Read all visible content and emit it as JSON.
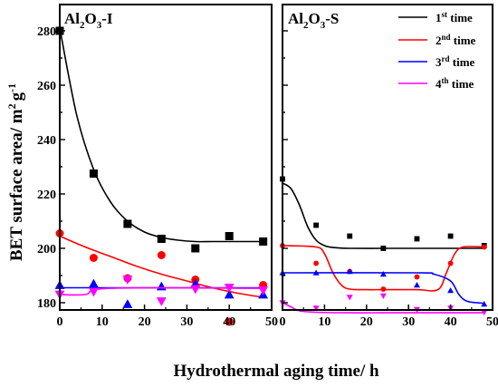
{
  "figure": {
    "xlabel": "Hydrothermal aging time/ h",
    "ylabel_main": "BET surface area/ m",
    "ylabel_sup1": "2",
    "ylabel_mid": "g",
    "ylabel_sup2": "-1"
  },
  "legend": {
    "items": [
      {
        "prefix": "1",
        "sup": "st",
        "suffix": " time",
        "color": "#000000"
      },
      {
        "prefix": "2",
        "sup": "nd",
        "suffix": " time",
        "color": "#ff0000"
      },
      {
        "prefix": "3",
        "sup": "rd",
        "suffix": " time",
        "color": "#0000ff"
      },
      {
        "prefix": "4",
        "sup": "th",
        "suffix": " time",
        "color": "#ff00ff"
      }
    ]
  },
  "chart_data": [
    {
      "type": "scatter",
      "panel_title_parts": [
        "Al",
        "2",
        "O",
        "3",
        "-I"
      ],
      "xlim": [
        0,
        50
      ],
      "ylim": [
        173,
        287
      ],
      "xticks": [
        "0",
        "10",
        "20",
        "30",
        "40",
        "50"
      ],
      "yticks": [
        "180",
        "200",
        "220",
        "240",
        "260",
        "280"
      ],
      "series": [
        {
          "color": "#000000",
          "marker": "square",
          "x": [
            0,
            8,
            16,
            24,
            32,
            40,
            48
          ],
          "y": [
            280,
            227.5,
            209,
            203.5,
            200,
            204.5,
            202.5
          ],
          "fit_x": [
            0,
            4,
            8,
            12,
            16,
            20,
            24,
            28,
            32,
            36,
            40,
            44,
            48
          ],
          "fit_y": [
            281,
            249,
            229,
            217,
            210,
            206,
            204,
            203,
            202.5,
            202.5,
            202.5,
            202.5,
            202.5
          ]
        },
        {
          "color": "#ff0000",
          "marker": "circle",
          "x": [
            0,
            8,
            16,
            24,
            32,
            40,
            48
          ],
          "y": [
            205.5,
            196.5,
            189,
            197.5,
            188.5,
            173,
            186.5
          ],
          "fit_x": [
            0,
            6,
            12,
            18,
            24,
            30,
            36,
            42,
            48
          ],
          "fit_y": [
            204.5,
            200.5,
            197,
            193.5,
            190.5,
            188,
            185.5,
            183.5,
            182
          ]
        },
        {
          "color": "#0000ff",
          "marker": "triangle-up",
          "x": [
            0,
            8,
            16,
            24,
            32,
            40,
            48
          ],
          "y": [
            186.5,
            187,
            179.5,
            186,
            187,
            183,
            183
          ],
          "fit_x": [
            0,
            48
          ],
          "fit_y": [
            185.5,
            185.5
          ]
        },
        {
          "color": "#ff00ff",
          "marker": "triangle-down",
          "x": [
            0,
            8,
            16,
            24,
            32,
            40,
            48
          ],
          "y": [
            183,
            184,
            188.5,
            180.5,
            185,
            185.5,
            184.5
          ],
          "fit_x": [
            0,
            6,
            12,
            48
          ],
          "fit_y": [
            183,
            183,
            185.3,
            185.3
          ]
        }
      ]
    },
    {
      "type": "scatter",
      "panel_title_parts": [
        "Al",
        "2",
        "O",
        "3",
        "-S"
      ],
      "xlim": [
        0,
        50
      ],
      "ylim": [
        173,
        287
      ],
      "xticks": [
        "0",
        "10",
        "20",
        "30",
        "40",
        "50"
      ],
      "series": [
        {
          "color": "#000000",
          "marker": "square",
          "x": [
            0,
            8,
            16,
            24,
            32,
            40,
            48
          ],
          "y": [
            225.5,
            208.5,
            204.5,
            200,
            203.5,
            204.5,
            201
          ],
          "fit_x": [
            0,
            2,
            4,
            6,
            8,
            10,
            12,
            16,
            24,
            32,
            40,
            48
          ],
          "fit_y": [
            224,
            222,
            216,
            208,
            203,
            201,
            200.3,
            200,
            200,
            200,
            200,
            200
          ]
        },
        {
          "color": "#ff0000",
          "marker": "circle",
          "x": [
            0,
            8,
            16,
            24,
            32,
            40,
            48
          ],
          "y": [
            201,
            194.5,
            191.5,
            185,
            189.5,
            194.5,
            200.5
          ],
          "fit_x": [
            0,
            8,
            10,
            12,
            14,
            16,
            20,
            24,
            32,
            37,
            39,
            41,
            43,
            48
          ],
          "fit_y": [
            201,
            200.5,
            198,
            191,
            186.5,
            185,
            184.8,
            184.8,
            184.8,
            184.8,
            191,
            198,
            200.5,
            200.5
          ]
        },
        {
          "color": "#0000ff",
          "marker": "triangle-up",
          "x": [
            0,
            8,
            16,
            24,
            32,
            40,
            48
          ],
          "y": [
            191,
            191,
            191.5,
            190.5,
            186.5,
            184.5,
            179.5
          ],
          "fit_x": [
            0,
            32,
            36,
            40,
            42,
            44,
            48
          ],
          "fit_y": [
            191,
            191,
            190.5,
            188,
            183,
            180.5,
            179.8
          ]
        },
        {
          "color": "#ff00ff",
          "marker": "triangle-down",
          "x": [
            0,
            8,
            16,
            24,
            32,
            40,
            48
          ],
          "y": [
            180,
            178,
            182,
            182.5,
            177.5,
            178,
            176.5
          ],
          "fit_x": [
            0,
            2,
            4,
            8,
            16,
            24,
            32,
            40,
            48
          ],
          "fit_y": [
            180,
            178.5,
            177,
            176.5,
            176.3,
            176.3,
            176.3,
            176.3,
            176.3
          ]
        }
      ]
    }
  ]
}
